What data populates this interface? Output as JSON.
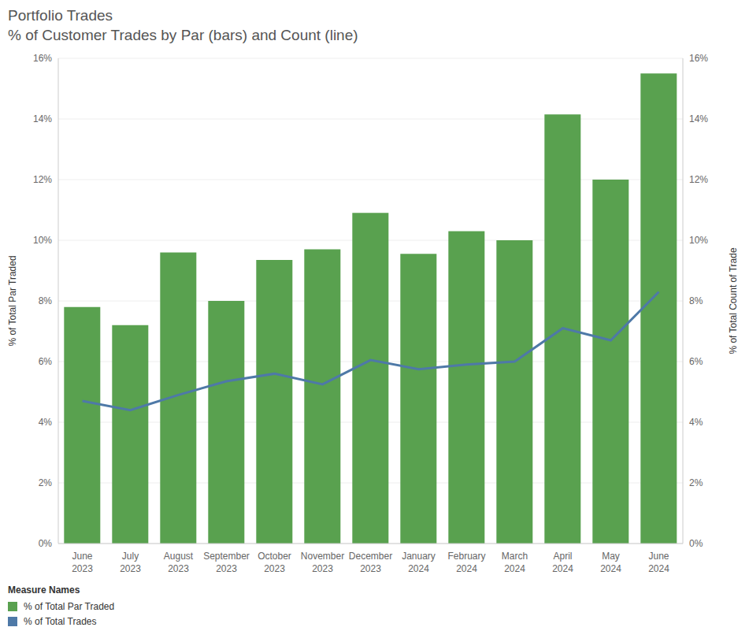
{
  "chart_data": {
    "type": "bar",
    "title": "Portfolio Trades",
    "subtitle": "% of Customer Trades by Par (bars) and Count (line)",
    "ylabel": "% of Total Par Traded",
    "y2label": "% of Total Count of Trade",
    "legend_title": "Measure Names",
    "legend": "bottom-left",
    "grid": true,
    "categories": [
      "June 2023",
      "July 2023",
      "August 2023",
      "September 2023",
      "October 2023",
      "November 2023",
      "December 2023",
      "January 2024",
      "February 2024",
      "March 2024",
      "April 2024",
      "May 2024",
      "June 2024"
    ],
    "series": [
      {
        "name": "% of Total Par Traded",
        "type": "bar",
        "color": "#59a14f",
        "values": [
          7.8,
          7.2,
          9.6,
          8.0,
          9.35,
          9.7,
          10.9,
          9.55,
          10.3,
          10.0,
          14.15,
          12.0,
          15.5
        ]
      },
      {
        "name": "% of Total Trades",
        "type": "line",
        "axis": "y2",
        "color": "#4e79a7",
        "marker": "none",
        "values": [
          4.7,
          4.4,
          4.9,
          5.35,
          5.6,
          5.25,
          6.05,
          5.75,
          5.9,
          6.0,
          7.1,
          6.7,
          8.3
        ]
      }
    ],
    "ylim": [
      0,
      16
    ],
    "yticks": [
      {
        "value": 0,
        "label": "0%"
      },
      {
        "value": 2,
        "label": "2%"
      },
      {
        "value": 4,
        "label": "4%"
      },
      {
        "value": 6,
        "label": "6%"
      },
      {
        "value": 8,
        "label": "8%"
      },
      {
        "value": 10,
        "label": "10%"
      },
      {
        "value": 12,
        "label": "12%"
      },
      {
        "value": 14,
        "label": "14%"
      },
      {
        "value": 16,
        "label": "16%"
      }
    ],
    "y2lim": [
      0,
      16
    ],
    "y2ticks": [
      {
        "value": 0,
        "label": "0%"
      },
      {
        "value": 2,
        "label": "2%"
      },
      {
        "value": 4,
        "label": "4%"
      },
      {
        "value": 6,
        "label": "6%"
      },
      {
        "value": 8,
        "label": "8%"
      },
      {
        "value": 10,
        "label": "10%"
      },
      {
        "value": 12,
        "label": "12%"
      },
      {
        "value": 14,
        "label": "14%"
      },
      {
        "value": 16,
        "label": "16%"
      }
    ]
  }
}
